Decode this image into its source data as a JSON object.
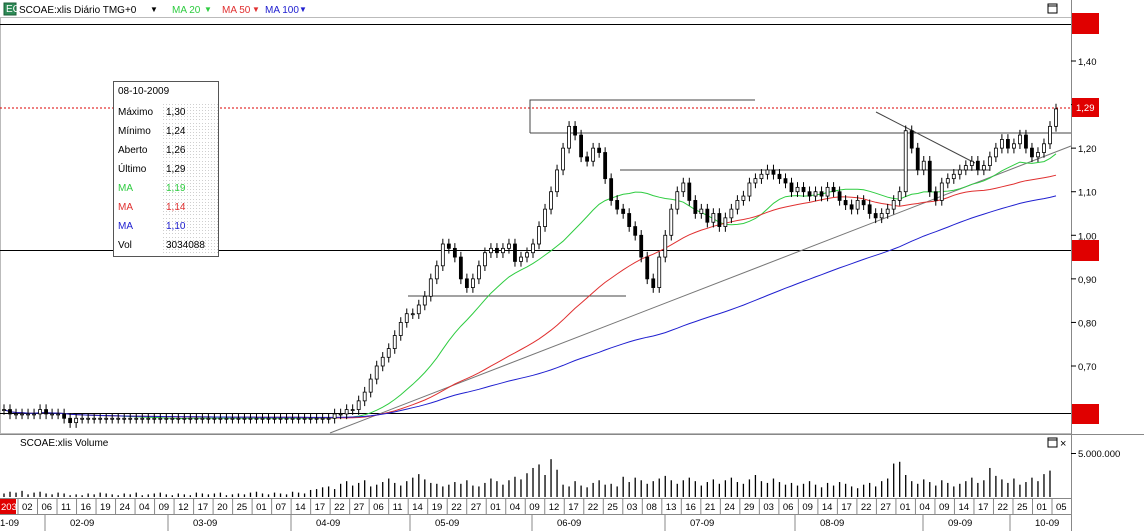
{
  "header": {
    "icon": "chart-icon",
    "symbol": "SCOAE:xlis Diário TMG+0",
    "ma20": "MA 20",
    "ma50": "MA 50",
    "ma100": "MA 100",
    "colors": {
      "ma20": "#2ecc40",
      "ma50": "#e03030",
      "ma100": "#2020d0"
    }
  },
  "info": {
    "date": "08-10-2009",
    "rows": [
      {
        "label": "Máximo",
        "value": "1,30",
        "color": "#000000"
      },
      {
        "label": "Mínimo",
        "value": "1,24",
        "color": "#000000"
      },
      {
        "label": "Aberto",
        "value": "1,26",
        "color": "#000000"
      },
      {
        "label": "Último",
        "value": "1,29",
        "color": "#000000"
      },
      {
        "label": "MA",
        "value": "1,19",
        "color": "#2ecc40"
      },
      {
        "label": "MA",
        "value": "1,14",
        "color": "#e03030"
      },
      {
        "label": "MA",
        "value": "1,10",
        "color": "#2020d0"
      },
      {
        "label": "Vol",
        "value": "3034088",
        "color": "#000000"
      }
    ]
  },
  "volume_panel": {
    "title": "SCOAE:xlis Volume",
    "tick_label": "5.000.000"
  },
  "price_badges": {
    "last": "1,29",
    "first_date": "203"
  },
  "chart_data": [
    {
      "type": "candlestick",
      "title": "SCOAE:xlis Diário TMG+0",
      "ylim": [
        0.55,
        1.52
      ],
      "yticks": [
        "1,40",
        "1,30",
        "1,20",
        "1,10",
        "1,00",
        "0,90",
        "0,80",
        "0,70"
      ],
      "ytick_values": [
        1.4,
        1.3,
        1.2,
        1.1,
        1.0,
        0.9,
        0.8,
        0.7
      ],
      "last_price": 1.29,
      "days": [
        "02",
        "06",
        "11",
        "16",
        "19",
        "24",
        "04",
        "09",
        "12",
        "17",
        "20",
        "25",
        "01",
        "07",
        "14",
        "17",
        "22",
        "27",
        "06",
        "11",
        "14",
        "19",
        "22",
        "27",
        "01",
        "04",
        "09",
        "12",
        "17",
        "22",
        "25",
        "03",
        "08",
        "13",
        "16",
        "21",
        "24",
        "29",
        "03",
        "06",
        "09",
        "14",
        "17",
        "22",
        "27",
        "01",
        "04",
        "09",
        "14",
        "17",
        "22",
        "25",
        "01",
        "05"
      ],
      "months": [
        "1-09",
        "02-09",
        "03-09",
        "04-09",
        "05-09",
        "06-09",
        "07-09",
        "08-09",
        "09-09",
        "10-09"
      ],
      "closes": [
        0.6,
        0.59,
        0.59,
        0.59,
        0.59,
        0.59,
        0.6,
        0.59,
        0.59,
        0.59,
        0.58,
        0.57,
        0.58,
        0.58,
        0.58,
        0.58,
        0.58,
        0.58,
        0.58,
        0.58,
        0.58,
        0.58,
        0.58,
        0.58,
        0.58,
        0.58,
        0.58,
        0.58,
        0.58,
        0.58,
        0.58,
        0.58,
        0.58,
        0.58,
        0.58,
        0.58,
        0.58,
        0.58,
        0.58,
        0.58,
        0.58,
        0.58,
        0.58,
        0.58,
        0.58,
        0.58,
        0.58,
        0.58,
        0.58,
        0.58,
        0.58,
        0.58,
        0.58,
        0.58,
        0.58,
        0.59,
        0.59,
        0.6,
        0.6,
        0.62,
        0.64,
        0.67,
        0.7,
        0.72,
        0.74,
        0.77,
        0.8,
        0.82,
        0.82,
        0.84,
        0.86,
        0.9,
        0.93,
        0.98,
        0.97,
        0.95,
        0.9,
        0.88,
        0.9,
        0.93,
        0.96,
        0.97,
        0.96,
        0.97,
        0.98,
        0.94,
        0.95,
        0.96,
        0.98,
        1.02,
        1.06,
        1.1,
        1.15,
        1.2,
        1.25,
        1.23,
        1.18,
        1.17,
        1.2,
        1.19,
        1.13,
        1.08,
        1.06,
        1.05,
        1.02,
        1.0,
        0.95,
        0.9,
        0.88,
        0.95,
        1.0,
        1.06,
        1.1,
        1.12,
        1.08,
        1.05,
        1.06,
        1.03,
        1.05,
        1.02,
        1.04,
        1.06,
        1.08,
        1.09,
        1.12,
        1.13,
        1.14,
        1.15,
        1.14,
        1.13,
        1.12,
        1.1,
        1.11,
        1.1,
        1.09,
        1.1,
        1.09,
        1.11,
        1.1,
        1.08,
        1.07,
        1.06,
        1.08,
        1.07,
        1.05,
        1.04,
        1.05,
        1.06,
        1.08,
        1.1,
        1.24,
        1.2,
        1.15,
        1.17,
        1.1,
        1.08,
        1.12,
        1.13,
        1.14,
        1.15,
        1.16,
        1.17,
        1.15,
        1.16,
        1.18,
        1.2,
        1.22,
        1.2,
        1.21,
        1.23,
        1.2,
        1.18,
        1.19,
        1.21,
        1.25,
        1.29
      ],
      "volumes": [
        400000,
        600000,
        500000,
        700000,
        300000,
        500000,
        600000,
        400000,
        300000,
        500000,
        400000,
        200000,
        300000,
        200000,
        400000,
        300000,
        500000,
        400000,
        300000,
        200000,
        400000,
        300000,
        500000,
        200000,
        300000,
        400000,
        500000,
        300000,
        200000,
        400000,
        300000,
        200000,
        500000,
        400000,
        300000,
        400000,
        500000,
        200000,
        300000,
        400000,
        300000,
        500000,
        600000,
        400000,
        300000,
        500000,
        400000,
        300000,
        600000,
        500000,
        400000,
        800000,
        900000,
        1100000,
        1200000,
        900000,
        1500000,
        1800000,
        1300000,
        1600000,
        1900000,
        1200000,
        1400000,
        1700000,
        2100000,
        1600000,
        1300000,
        1800000,
        2200000,
        2600000,
        2000000,
        1600000,
        1500000,
        1200000,
        1400000,
        1700000,
        1500000,
        1900000,
        1300000,
        1200000,
        1600000,
        2100000,
        1800000,
        1400000,
        1900000,
        2300000,
        2000000,
        2700000,
        3300000,
        3700000,
        2500000,
        4300000,
        3100000,
        1400000,
        1200000,
        1800000,
        1300000,
        1100000,
        1600000,
        1900000,
        1400000,
        1500000,
        1200000,
        2300000,
        1700000,
        2200000,
        1900000,
        1500000,
        1800000,
        2100000,
        2400000,
        1900000,
        1500000,
        1900000,
        2200000,
        1800000,
        1300000,
        1700000,
        2000000,
        1500000,
        1900000,
        2200000,
        1700000,
        1500000,
        2000000,
        2500000,
        1800000,
        1600000,
        2100000,
        1700000,
        1400000,
        1600000,
        1300000,
        1500000,
        1800000,
        1400000,
        1100000,
        1600000,
        1300000,
        1700000,
        1500000,
        1200000,
        1000000,
        1400000,
        1600000,
        1200000,
        1800000,
        2100000,
        3800000,
        4000000,
        2500000,
        1800000,
        1500000,
        2000000,
        1700000,
        1300000,
        1900000,
        1600000,
        1200000,
        1500000,
        1800000,
        2200000,
        1600000,
        1900000,
        3300000,
        2400000,
        2000000,
        1600000,
        2100000,
        1400000,
        1700000,
        2200000,
        1800000,
        2600000,
        3000000
      ]
    }
  ]
}
